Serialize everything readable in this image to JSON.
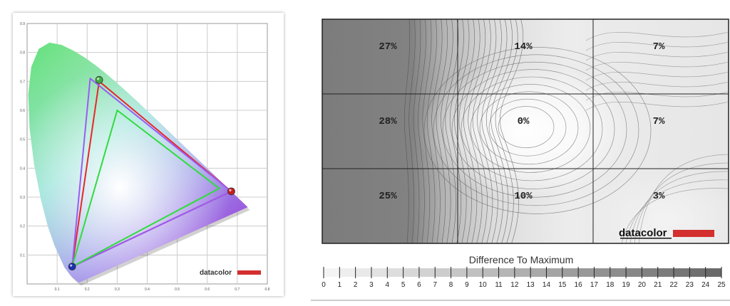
{
  "chart_data": [
    {
      "type": "scatter",
      "subtype": "cie-1931-chromaticity",
      "xlim": [
        0,
        0.8
      ],
      "ylim": [
        0,
        0.9
      ],
      "x_ticks": [
        "0",
        "0.1",
        "0.2",
        "0.3",
        "0.4",
        "0.5",
        "0.6",
        "0.7",
        "0.8"
      ],
      "y_ticks": [
        "0",
        "0.1",
        "0.2",
        "0.3",
        "0.4",
        "0.5",
        "0.6",
        "0.7",
        "0.8",
        "0.9"
      ],
      "grid": true,
      "series": [
        {
          "color": "#e8262b",
          "points": [
            [
              0.24,
              0.7
            ],
            [
              0.68,
              0.32
            ],
            [
              0.15,
              0.06
            ]
          ]
        },
        {
          "color": "#9b5cf2",
          "points": [
            [
              0.21,
              0.71
            ],
            [
              0.68,
              0.32
            ],
            [
              0.15,
              0.06
            ]
          ]
        },
        {
          "color": "#2fdc3c",
          "points": [
            [
              0.3,
              0.6
            ],
            [
              0.64,
              0.33
            ],
            [
              0.15,
              0.06
            ]
          ]
        }
      ],
      "primary_markers": [
        {
          "point": [
            0.24,
            0.705
          ],
          "color": "#3fae3f"
        },
        {
          "point": [
            0.68,
            0.32
          ],
          "color": "#c81e1e"
        },
        {
          "point": [
            0.15,
            0.06
          ],
          "color": "#1e2fb4"
        }
      ],
      "logo": "datacolor"
    },
    {
      "type": "heatmap",
      "grid_rows": 3,
      "grid_cols": 3,
      "cells": [
        [
          "27%",
          "14%",
          "7%"
        ],
        [
          "28%",
          "0%",
          "7%"
        ],
        [
          "25%",
          "10%",
          "3%"
        ]
      ],
      "legend_title": "Difference To Maximum",
      "legend_scale": [
        "0",
        "1",
        "2",
        "3",
        "4",
        "5",
        "6",
        "7",
        "8",
        "9",
        "10",
        "11",
        "12",
        "13",
        "14",
        "15",
        "16",
        "17",
        "18",
        "19",
        "20",
        "21",
        "22",
        "23",
        "24",
        "25"
      ],
      "legend_color_min": "#f4f4f4",
      "legend_color_max": "#6a6a6a",
      "logo": "datacolor"
    }
  ]
}
